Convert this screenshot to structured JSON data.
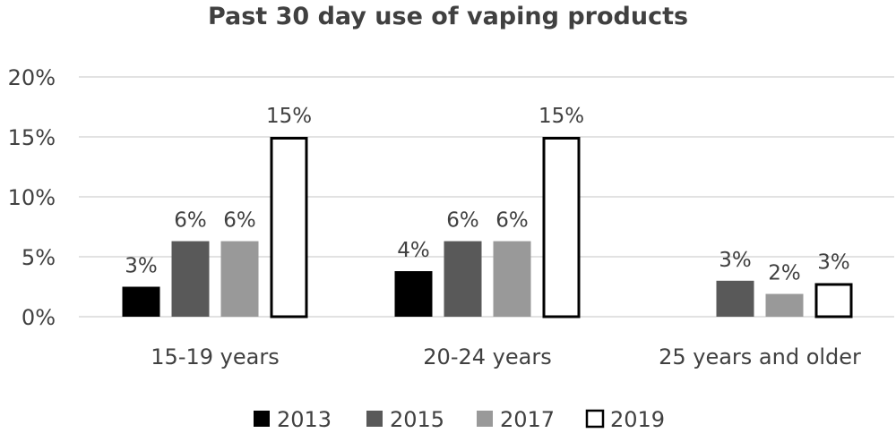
{
  "chart_data": {
    "type": "bar",
    "title": "Past 30 day use of vaping products",
    "categories": [
      "15-19 years",
      "20-24 years",
      "25 years and older"
    ],
    "series": [
      {
        "name": "2013",
        "color": "#000000",
        "style": "filled",
        "values": [
          2.5,
          3.8,
          null
        ],
        "labels": [
          "3%",
          "4%",
          ""
        ]
      },
      {
        "name": "2015",
        "color": "#595959",
        "style": "filled",
        "values": [
          6.3,
          6.3,
          3.0
        ],
        "labels": [
          "6%",
          "6%",
          "3%"
        ]
      },
      {
        "name": "2017",
        "color": "#999999",
        "style": "filled",
        "values": [
          6.3,
          6.3,
          1.9
        ],
        "labels": [
          "6%",
          "6%",
          "2%"
        ]
      },
      {
        "name": "2019",
        "color": "#000000",
        "style": "outline",
        "values": [
          15.0,
          15.0,
          2.8
        ],
        "labels": [
          "15%",
          "15%",
          "3%"
        ]
      }
    ],
    "ylim": [
      0,
      20
    ],
    "yticks": [
      0,
      5,
      10,
      15,
      20
    ],
    "ytick_labels": [
      "0%",
      "5%",
      "10%",
      "15%",
      "20%"
    ],
    "xlabel": "",
    "ylabel": "",
    "grid": true,
    "legend_position": "bottom"
  }
}
